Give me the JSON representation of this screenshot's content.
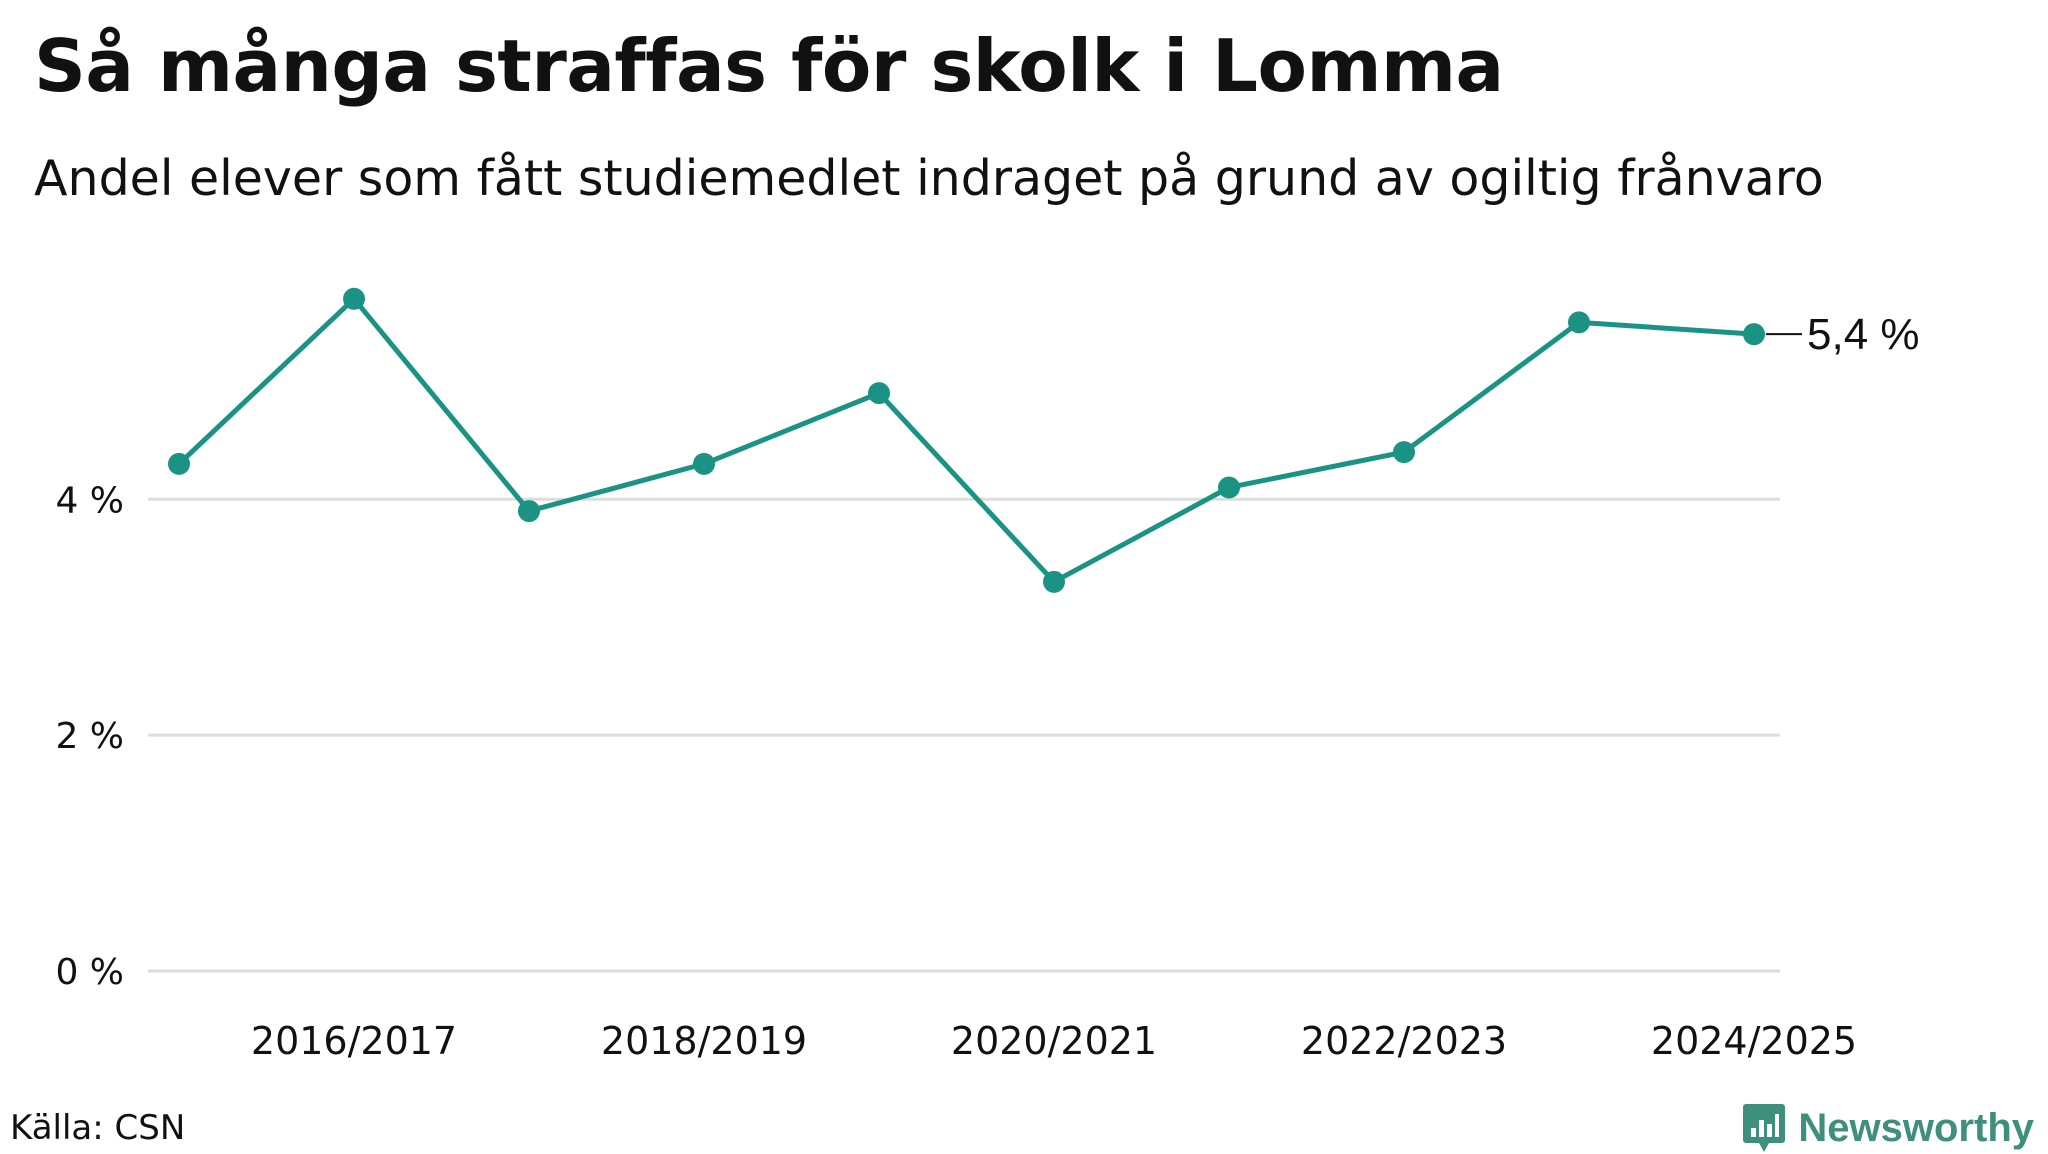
{
  "title": "Så många straffas för skolk i Lomma",
  "subtitle": "Andel elever som fått studiemedlet indraget på grund av ogiltig frånvaro",
  "source": "Källa: CSN",
  "brand": {
    "name": "Newsworthy",
    "icon": "newsworthy-logo-icon",
    "color": "#3e8f7d"
  },
  "chart_data": {
    "type": "line",
    "x": [
      "2015/2016",
      "2016/2017",
      "2017/2018",
      "2018/2019",
      "2019/2020",
      "2020/2021",
      "2021/2022",
      "2022/2023",
      "2023/2024",
      "2024/2025"
    ],
    "x_tick_labels": [
      "2016/2017",
      "2018/2019",
      "2020/2021",
      "2022/2023",
      "2024/2025"
    ],
    "series": [
      {
        "values": [
          4.3,
          5.7,
          3.9,
          4.3,
          4.9,
          3.3,
          4.1,
          4.4,
          5.5,
          5.4
        ],
        "color": "#1a9384"
      }
    ],
    "y_ticks": [
      0,
      2,
      4
    ],
    "y_tick_labels": [
      "0 %",
      "2 %",
      "4 %"
    ],
    "ylim": [
      0,
      5.8
    ],
    "end_label": "5,4 %",
    "grid": true,
    "legend": "none",
    "xlabel": "",
    "ylabel": ""
  }
}
